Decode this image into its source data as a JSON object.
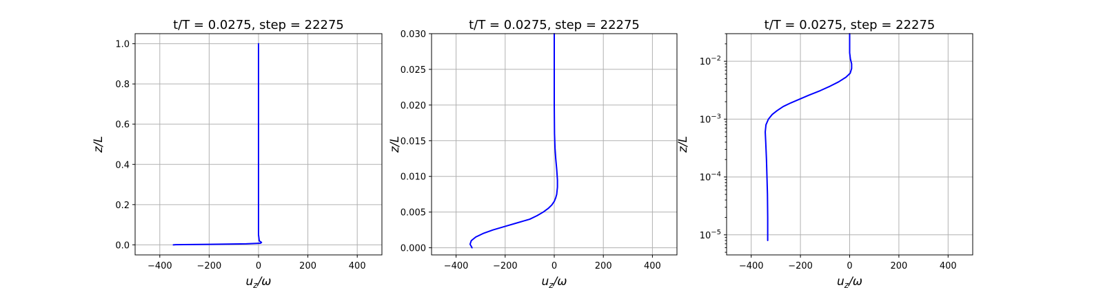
{
  "chart_data": [
    {
      "type": "line",
      "title": "t/T = 0.0275, step = 22275",
      "xlabel": "u_z/ω",
      "ylabel": "z/L",
      "xlim": [
        -500,
        500
      ],
      "ylim": [
        -0.05,
        1.05
      ],
      "yscale": "linear",
      "grid": true,
      "xticks": [
        -400,
        -200,
        0,
        200,
        400
      ],
      "xtick_labels": [
        "−400",
        "−200",
        "0",
        "200",
        "400"
      ],
      "yticks": [
        0.0,
        0.2,
        0.4,
        0.6,
        0.8,
        1.0
      ],
      "ytick_labels": [
        "0.0",
        "0.2",
        "0.4",
        "0.6",
        "0.8",
        "1.0"
      ],
      "series": [
        {
          "color": "#0000ff",
          "x": [
            -345,
            -335,
            -200,
            -50,
            8,
            12,
            3,
            0,
            0,
            0
          ],
          "y": [
            0.0,
            0.001,
            0.0025,
            0.005,
            0.008,
            0.012,
            0.02,
            0.05,
            0.5,
            1.0
          ]
        }
      ]
    },
    {
      "type": "line",
      "title": "t/T = 0.0275, step = 22275",
      "xlabel": "u_z/ω",
      "ylabel": "z/L",
      "xlim": [
        -500,
        500
      ],
      "ylim": [
        -0.001,
        0.03
      ],
      "yscale": "linear",
      "grid": true,
      "xticks": [
        -400,
        -200,
        0,
        200,
        400
      ],
      "xtick_labels": [
        "−400",
        "−200",
        "0",
        "200",
        "400"
      ],
      "yticks": [
        0.0,
        0.005,
        0.01,
        0.015,
        0.02,
        0.025,
        0.03
      ],
      "ytick_labels": [
        "0.000",
        "0.005",
        "0.010",
        "0.015",
        "0.020",
        "0.025",
        "0.030"
      ],
      "series": [
        {
          "color": "#0000ff",
          "x": [
            -335,
            -343,
            -338,
            -320,
            -290,
            -250,
            -200,
            -150,
            -100,
            -70,
            -45,
            -25,
            -10,
            0,
            6,
            10,
            13,
            13,
            10,
            6,
            3,
            1,
            0,
            0,
            0
          ],
          "y": [
            0.0,
            0.0005,
            0.001,
            0.0015,
            0.002,
            0.0025,
            0.003,
            0.0035,
            0.004,
            0.0045,
            0.005,
            0.0055,
            0.006,
            0.0065,
            0.007,
            0.0075,
            0.0085,
            0.0095,
            0.011,
            0.0125,
            0.014,
            0.016,
            0.02,
            0.025,
            0.03
          ]
        }
      ]
    },
    {
      "type": "line",
      "title": "t/T = 0.0275, step = 22275",
      "xlabel": "u_z/ω",
      "ylabel": "z/L",
      "xlim": [
        -500,
        500
      ],
      "ylim": [
        4.5e-06,
        0.03
      ],
      "yscale": "log",
      "grid": true,
      "xticks": [
        -400,
        -200,
        0,
        200,
        400
      ],
      "xtick_labels": [
        "−400",
        "−200",
        "0",
        "200",
        "400"
      ],
      "yticks": [
        1e-05,
        0.0001,
        0.001,
        0.01
      ],
      "ytick_exponents": [
        "−5",
        "−4",
        "−3",
        "−2"
      ],
      "ytick_base": "10",
      "series": [
        {
          "color": "#0000ff",
          "x": [
            -333,
            -333,
            -334,
            -336,
            -338,
            -341,
            -343,
            -340,
            -330,
            -315,
            -295,
            -270,
            -240,
            -205,
            -165,
            -120,
            -80,
            -45,
            -15,
            2,
            8,
            8,
            3,
            0,
            0,
            0
          ],
          "y": [
            8e-06,
            2e-05,
            5e-05,
            0.0001,
            0.0002,
            0.0004,
            0.0006,
            0.0008,
            0.001,
            0.0012,
            0.0014,
            0.00165,
            0.0019,
            0.0022,
            0.0026,
            0.0031,
            0.0037,
            0.0044,
            0.0053,
            0.0062,
            0.0075,
            0.009,
            0.011,
            0.014,
            0.02,
            0.03
          ]
        }
      ]
    }
  ]
}
